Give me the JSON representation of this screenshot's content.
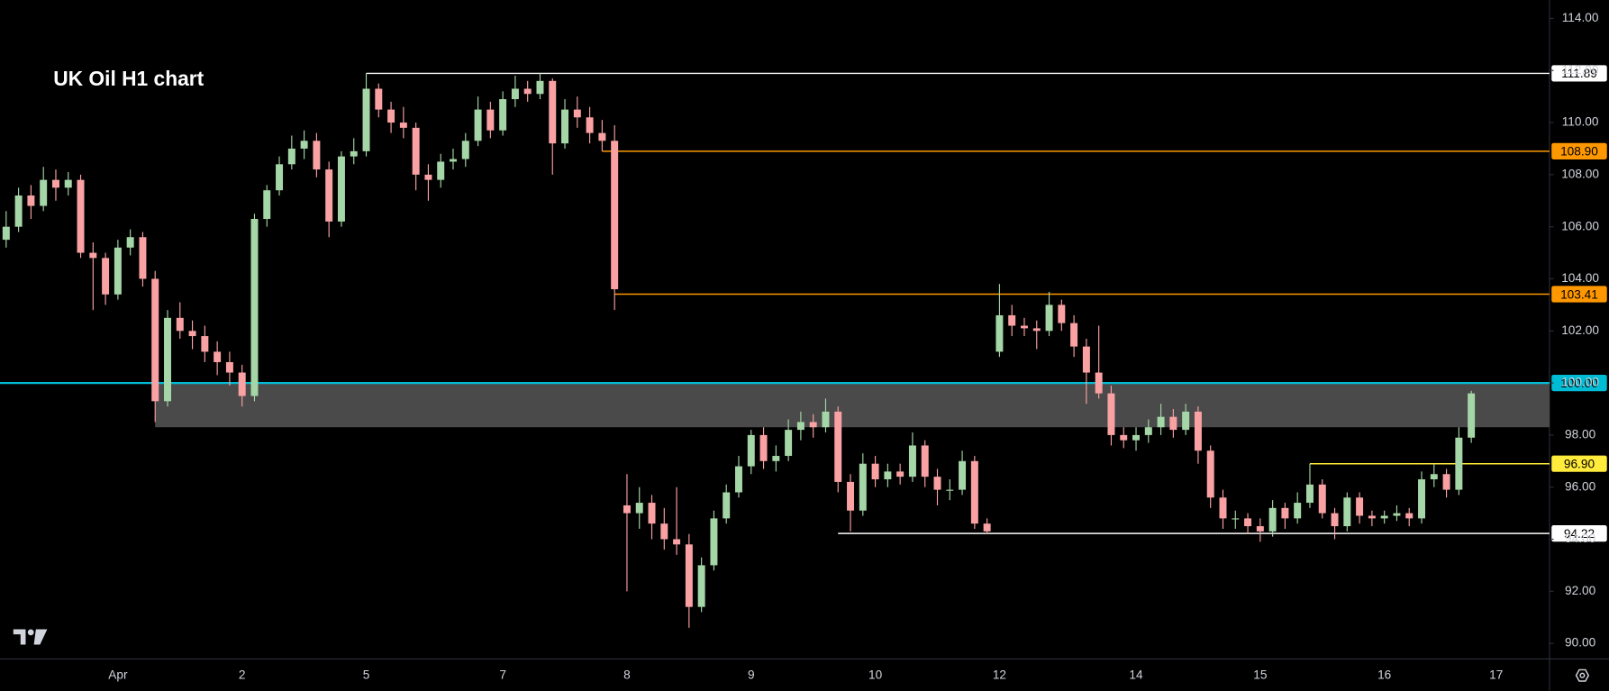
{
  "chart_data": {
    "type": "candlestick",
    "title": "UK Oil H1 chart",
    "up_color": "#a5d6a7",
    "down_color": "#faa1a4",
    "ylim": [
      89.4,
      114.7
    ],
    "yticks": [
      {
        "value": 90,
        "label": "90.00"
      },
      {
        "value": 92,
        "label": "92.00"
      },
      {
        "value": 94,
        "label": "94.00"
      },
      {
        "value": 96,
        "label": "96.00"
      },
      {
        "value": 98,
        "label": "98.00"
      },
      {
        "value": 100,
        "label": "100.00"
      },
      {
        "value": 102,
        "label": "102.00"
      },
      {
        "value": 104,
        "label": "104.00"
      },
      {
        "value": 106,
        "label": "106.00"
      },
      {
        "value": 108,
        "label": "108.00"
      },
      {
        "value": 110,
        "label": "110.00"
      },
      {
        "value": 112,
        "label": "112.00"
      },
      {
        "value": 114,
        "label": "114.00"
      }
    ],
    "categories": [
      null,
      null,
      null,
      null,
      null,
      null,
      null,
      null,
      null,
      "Apr",
      null,
      null,
      null,
      null,
      null,
      null,
      null,
      null,
      null,
      "2",
      null,
      null,
      null,
      null,
      null,
      null,
      null,
      null,
      null,
      "5",
      null,
      null,
      null,
      null,
      null,
      null,
      null,
      null,
      null,
      null,
      "7",
      null,
      null,
      null,
      null,
      null,
      null,
      null,
      null,
      null,
      "8",
      null,
      null,
      null,
      null,
      null,
      null,
      null,
      null,
      null,
      "9",
      null,
      null,
      null,
      null,
      null,
      null,
      null,
      null,
      null,
      "10",
      null,
      null,
      null,
      null,
      null,
      null,
      null,
      null,
      null,
      "12",
      null,
      null,
      null,
      null,
      null,
      null,
      null,
      null,
      null,
      null,
      "14",
      null,
      null,
      null,
      null,
      null,
      null,
      null,
      null,
      null,
      "15",
      null,
      null,
      null,
      null,
      null,
      null,
      null,
      null,
      null,
      "16",
      null,
      null,
      null,
      null,
      null,
      null,
      null,
      null,
      "17"
    ],
    "candles": [
      [
        105.5,
        106.6,
        105.2,
        106.0
      ],
      [
        106.0,
        107.5,
        105.8,
        107.2
      ],
      [
        107.2,
        107.6,
        106.3,
        106.8
      ],
      [
        106.8,
        108.3,
        106.6,
        107.8
      ],
      [
        107.8,
        108.2,
        107.0,
        107.5
      ],
      [
        107.5,
        108.1,
        107.2,
        107.8
      ],
      [
        107.8,
        108.0,
        104.8,
        105.0
      ],
      [
        105.0,
        105.4,
        102.8,
        104.8
      ],
      [
        104.8,
        105.0,
        103.0,
        103.4
      ],
      [
        103.4,
        105.5,
        103.2,
        105.2
      ],
      [
        105.2,
        105.9,
        104.9,
        105.6
      ],
      [
        105.6,
        105.8,
        103.7,
        104.0
      ],
      [
        104.0,
        104.3,
        98.5,
        99.3
      ],
      [
        99.3,
        102.8,
        99.1,
        102.5
      ],
      [
        102.5,
        103.1,
        101.7,
        102.0
      ],
      [
        102.0,
        102.4,
        101.3,
        101.8
      ],
      [
        101.8,
        102.2,
        100.8,
        101.2
      ],
      [
        101.2,
        101.6,
        100.3,
        100.8
      ],
      [
        100.8,
        101.2,
        99.9,
        100.4
      ],
      [
        100.4,
        100.7,
        99.1,
        99.5
      ],
      [
        99.5,
        106.5,
        99.3,
        106.3
      ],
      [
        106.3,
        107.6,
        106.0,
        107.4
      ],
      [
        107.4,
        108.7,
        107.2,
        108.4
      ],
      [
        108.4,
        109.5,
        108.2,
        109.0
      ],
      [
        109.0,
        109.7,
        108.6,
        109.3
      ],
      [
        109.3,
        109.6,
        107.9,
        108.2
      ],
      [
        108.2,
        108.5,
        105.6,
        106.2
      ],
      [
        106.2,
        108.9,
        106.0,
        108.7
      ],
      [
        108.7,
        109.4,
        108.4,
        108.9
      ],
      [
        108.9,
        111.89,
        108.7,
        111.3
      ],
      [
        111.3,
        111.5,
        110.2,
        110.5
      ],
      [
        110.5,
        110.8,
        109.6,
        110.0
      ],
      [
        110.0,
        110.6,
        109.4,
        109.8
      ],
      [
        109.8,
        110.0,
        107.4,
        108.0
      ],
      [
        108.0,
        108.4,
        107.0,
        107.8
      ],
      [
        107.8,
        108.8,
        107.5,
        108.5
      ],
      [
        108.5,
        109.0,
        108.2,
        108.6
      ],
      [
        108.6,
        109.6,
        108.3,
        109.3
      ],
      [
        109.3,
        111.0,
        109.1,
        110.5
      ],
      [
        110.5,
        110.8,
        109.4,
        109.7
      ],
      [
        109.7,
        111.2,
        109.5,
        110.9
      ],
      [
        110.9,
        111.8,
        110.6,
        111.3
      ],
      [
        111.3,
        111.6,
        110.8,
        111.1
      ],
      [
        111.1,
        111.89,
        110.9,
        111.6
      ],
      [
        111.6,
        111.7,
        108.0,
        109.2
      ],
      [
        109.2,
        110.9,
        109.0,
        110.5
      ],
      [
        110.5,
        111.0,
        109.8,
        110.2
      ],
      [
        110.2,
        110.6,
        109.2,
        109.6
      ],
      [
        109.6,
        110.1,
        108.9,
        109.3
      ],
      [
        109.3,
        109.9,
        102.8,
        103.6
      ],
      [
        95.3,
        96.5,
        92.0,
        95.0
      ],
      [
        95.0,
        96.0,
        94.4,
        95.4
      ],
      [
        95.4,
        95.7,
        94.0,
        94.6
      ],
      [
        94.6,
        95.2,
        93.6,
        94.0
      ],
      [
        94.0,
        96.0,
        93.4,
        93.8
      ],
      [
        93.8,
        94.2,
        90.6,
        91.4
      ],
      [
        91.4,
        93.3,
        91.2,
        93.0
      ],
      [
        93.0,
        95.1,
        92.8,
        94.8
      ],
      [
        94.8,
        96.1,
        94.6,
        95.8
      ],
      [
        95.8,
        97.2,
        95.6,
        96.8
      ],
      [
        96.8,
        98.2,
        96.5,
        98.0
      ],
      [
        98.0,
        98.3,
        96.7,
        97.0
      ],
      [
        97.0,
        97.6,
        96.6,
        97.2
      ],
      [
        97.2,
        98.6,
        97.0,
        98.2
      ],
      [
        98.2,
        98.9,
        97.8,
        98.5
      ],
      [
        98.5,
        98.8,
        97.9,
        98.3
      ],
      [
        98.3,
        99.4,
        98.1,
        98.9
      ],
      [
        98.9,
        99.1,
        95.8,
        96.2
      ],
      [
        96.2,
        96.5,
        94.3,
        95.1
      ],
      [
        95.1,
        97.3,
        94.9,
        96.9
      ],
      [
        96.9,
        97.2,
        96.0,
        96.3
      ],
      [
        96.3,
        96.9,
        96.0,
        96.6
      ],
      [
        96.6,
        96.9,
        96.1,
        96.4
      ],
      [
        96.4,
        98.1,
        96.2,
        97.6
      ],
      [
        97.6,
        97.8,
        96.0,
        96.4
      ],
      [
        96.4,
        96.7,
        95.3,
        95.9
      ],
      [
        95.9,
        96.3,
        95.5,
        95.9
      ],
      [
        95.9,
        97.4,
        95.7,
        97.0
      ],
      [
        97.0,
        97.2,
        94.4,
        94.6
      ],
      [
        94.6,
        94.8,
        94.2,
        94.3
      ],
      [
        101.2,
        103.8,
        101.0,
        102.6
      ],
      [
        102.6,
        103.0,
        101.8,
        102.2
      ],
      [
        102.2,
        102.5,
        101.8,
        102.1
      ],
      [
        102.1,
        102.4,
        101.3,
        102.0
      ],
      [
        102.0,
        103.5,
        101.8,
        103.0
      ],
      [
        103.0,
        103.2,
        102.0,
        102.3
      ],
      [
        102.3,
        102.6,
        101.0,
        101.4
      ],
      [
        101.4,
        101.7,
        99.2,
        100.4
      ],
      [
        100.4,
        102.2,
        99.4,
        99.6
      ],
      [
        99.6,
        99.9,
        97.6,
        98.0
      ],
      [
        98.0,
        98.3,
        97.5,
        97.8
      ],
      [
        97.8,
        98.3,
        97.4,
        98.0
      ],
      [
        98.0,
        98.6,
        97.7,
        98.3
      ],
      [
        98.3,
        99.2,
        98.0,
        98.7
      ],
      [
        98.7,
        99.0,
        97.9,
        98.2
      ],
      [
        98.2,
        99.2,
        98.0,
        98.9
      ],
      [
        98.9,
        99.1,
        96.9,
        97.4
      ],
      [
        97.4,
        97.6,
        95.2,
        95.6
      ],
      [
        95.6,
        95.9,
        94.4,
        94.8
      ],
      [
        94.8,
        95.1,
        94.4,
        94.8
      ],
      [
        94.8,
        95.0,
        94.2,
        94.5
      ],
      [
        94.5,
        94.8,
        93.9,
        94.3
      ],
      [
        94.3,
        95.5,
        94.1,
        95.2
      ],
      [
        95.2,
        95.4,
        94.4,
        94.8
      ],
      [
        94.8,
        95.8,
        94.6,
        95.4
      ],
      [
        95.4,
        96.9,
        95.2,
        96.1
      ],
      [
        96.1,
        96.3,
        94.8,
        95.0
      ],
      [
        95.0,
        95.2,
        94.0,
        94.5
      ],
      [
        94.5,
        95.8,
        94.3,
        95.6
      ],
      [
        95.6,
        95.8,
        94.6,
        94.9
      ],
      [
        94.9,
        95.1,
        94.5,
        94.8
      ],
      [
        94.8,
        95.1,
        94.6,
        94.9
      ],
      [
        94.9,
        95.3,
        94.7,
        95.0
      ],
      [
        95.0,
        95.2,
        94.5,
        94.8
      ],
      [
        94.8,
        96.6,
        94.6,
        96.3
      ],
      [
        96.3,
        96.9,
        96.0,
        96.5
      ],
      [
        96.5,
        96.7,
        95.6,
        95.9
      ],
      [
        95.9,
        98.3,
        95.7,
        97.9
      ],
      [
        97.9,
        99.7,
        97.7,
        99.6
      ],
      null,
      null
    ],
    "zone": {
      "from": 98.3,
      "to": 100,
      "start": 12,
      "color": "#4a4a4a"
    },
    "levels": [
      {
        "value": 111.89,
        "label": "111.89",
        "color": "#ffffff",
        "start": 29
      },
      {
        "value": 108.9,
        "label": "108.90",
        "color": "#ff9800",
        "start": 48
      },
      {
        "value": 103.41,
        "label": "103.41",
        "color": "#ff9800",
        "start": 49
      },
      {
        "value": 100,
        "label": "100.00",
        "color": "#00bcd4"
      },
      {
        "value": 96.9,
        "label": "96.90",
        "color": "#ffeb3b",
        "start": 105
      },
      {
        "value": 94.22,
        "label": "94.22",
        "color": "#ffffff",
        "start": 67
      }
    ]
  }
}
